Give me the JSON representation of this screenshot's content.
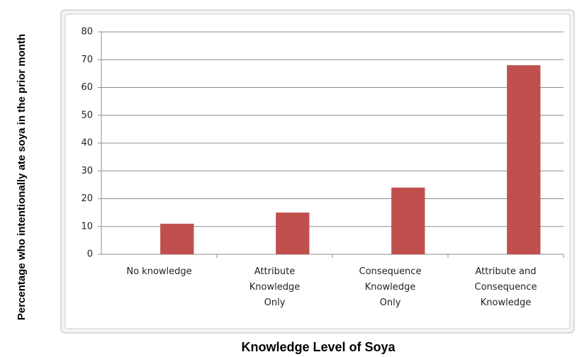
{
  "chart_data": {
    "type": "bar",
    "y_label": "Percentage who intentionally ate soya in the prior month",
    "x_label": "Knowledge Level of Soya",
    "categories": [
      "No knowledge",
      "Attribute Knowledge Only",
      "Consequence Knowledge Only",
      "Attribute and Consequence Knowledge"
    ],
    "values": [
      11,
      15,
      24,
      68
    ],
    "color": "#c0504d",
    "ylim": [
      0,
      80
    ],
    "yticks": [
      0,
      10,
      20,
      30,
      40,
      50,
      60,
      70,
      80
    ],
    "grid": true
  }
}
